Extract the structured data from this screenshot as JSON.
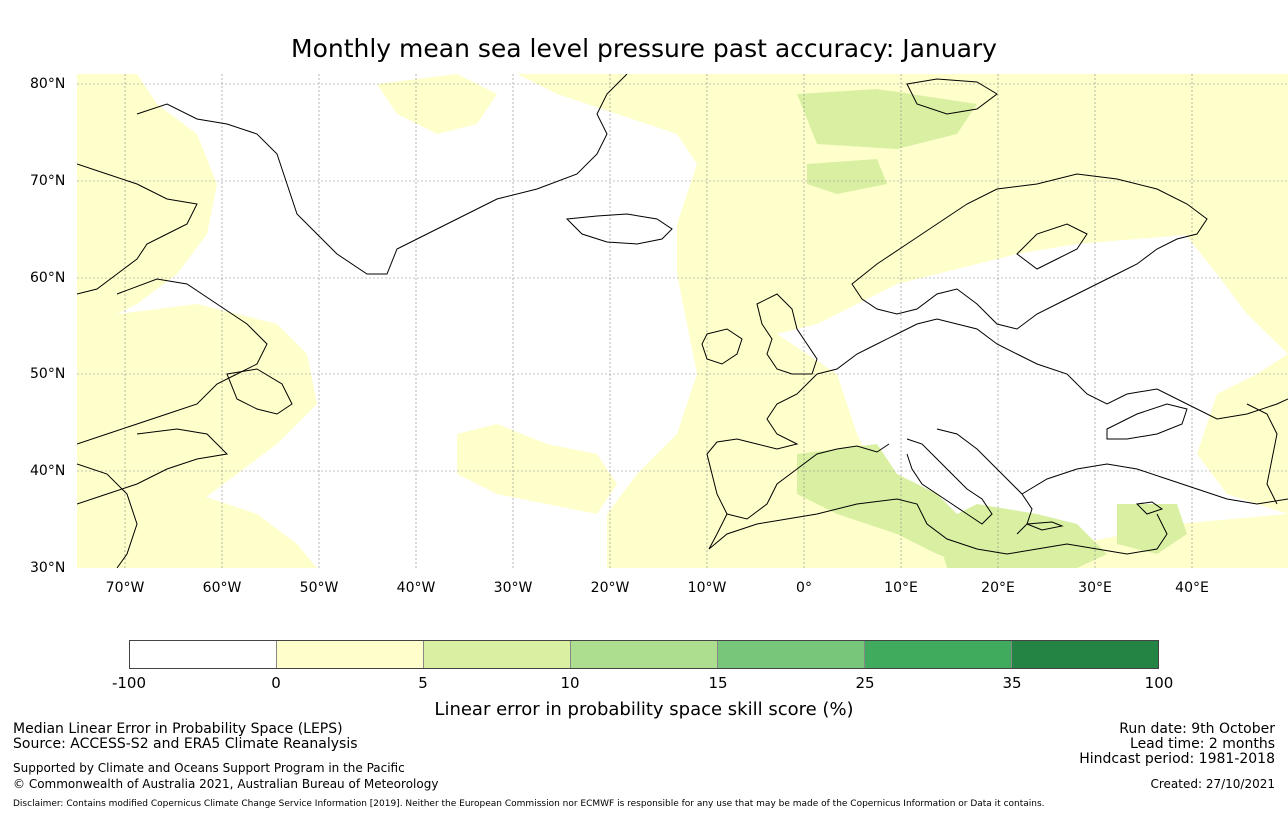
{
  "title": "Monthly mean sea level pressure past accuracy: January",
  "map": {
    "lat_labels": [
      "80°N",
      "70°N",
      "60°N",
      "50°N",
      "40°N",
      "30°N"
    ],
    "lon_labels": [
      "70°W",
      "60°W",
      "50°W",
      "40°W",
      "30°W",
      "20°W",
      "10°W",
      "0°",
      "10°E",
      "20°E",
      "30°E",
      "40°E"
    ],
    "lat_range": [
      30,
      81
    ],
    "lon_range": [
      -75,
      50
    ],
    "land_color": "#ffffff",
    "coastline_color": "#000000",
    "gridline_color": "#888888"
  },
  "colorbar": {
    "ticks": [
      "-100",
      "0",
      "5",
      "10",
      "15",
      "25",
      "35",
      "100"
    ],
    "colors": [
      "#ffffff",
      "#ffffcc",
      "#d9f0a3",
      "#addd8e",
      "#78c679",
      "#41ab5d",
      "#238443"
    ],
    "label": "Linear error in probability space skill score (%)"
  },
  "footer": {
    "left_1": "Median Linear Error in Probability Space (LEPS)",
    "left_2": "Source: ACCESS-S2 and ERA5 Climate Reanalysis",
    "left_3": "Supported by Climate and Oceans Support Program in the Pacific",
    "left_4": "© Commonwealth of Australia 2021, Australian Bureau of Meteorology",
    "right_1": "Run date: 9th October",
    "right_2": "Lead time: 2 months",
    "right_3": "Hindcast period: 1981-2018",
    "right_4": "Created: 27/10/2021",
    "disclaimer": "Disclaimer: Contains modified Copernicus Climate Change Service Information [2019]. Neither the European Commission nor ECMWF is responsible for any use that may be made of the Copernicus Information or Data it contains."
  }
}
